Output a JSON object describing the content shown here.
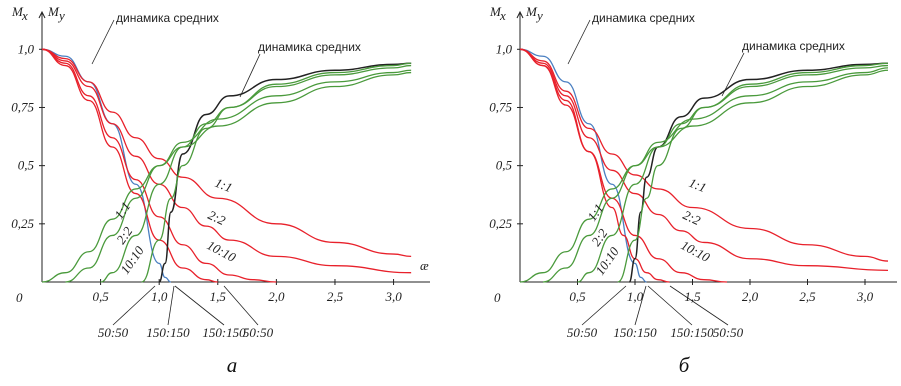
{
  "chart_data": [
    {
      "type": "line",
      "caption": "а",
      "ylabel_x": "M",
      "ylabel_x_sub": "x",
      "ylabel_y": "M",
      "ylabel_y_sub": "y",
      "xlabel": "æ",
      "origin_label": "0",
      "xlim": [
        0,
        3.2
      ],
      "ylim": [
        0,
        1.07
      ],
      "x_ticks": [
        "0,5",
        "1,0",
        "1,5",
        "2,0",
        "2,5",
        "3,0"
      ],
      "x_tick_values": [
        0.5,
        1.0,
        1.5,
        2.0,
        2.5,
        3.0
      ],
      "y_ticks": [
        "1,0",
        "0,75",
        "0,5",
        "0,25"
      ],
      "y_tick_values": [
        1.0,
        0.75,
        0.5,
        0.25
      ],
      "colors": {
        "mean": "#4a7fc1",
        "red": "#e8212b",
        "green": "#4a9a3c",
        "black": "#222222"
      },
      "annotations": {
        "mean_dyn_1": "динамика средних",
        "mean_dyn_2": "динамика средних",
        "red_1_1": "1:1",
        "red_2_2": "2:2",
        "red_10_10": "10:10",
        "green_1_1": "1:1",
        "green_2_2": "2:2",
        "green_10_10": "10:10",
        "bottom_50_50_a": "50:50",
        "bottom_150_150_a": "150:150",
        "bottom_150_150_b": "150:150",
        "bottom_50_50_b": "50:50"
      },
      "series": [
        {
          "kind": "mean_decay",
          "x": [
            0,
            0.2,
            0.4,
            0.6,
            0.8,
            1.0,
            1.05,
            1.1
          ],
          "y": [
            1.0,
            0.97,
            0.86,
            0.68,
            0.42,
            0.08,
            0.02,
            0.0
          ]
        },
        {
          "kind": "red",
          "x": [
            0,
            0.2,
            0.4,
            0.6,
            0.8,
            1.0,
            1.2,
            1.5,
            2.0,
            2.5,
            3.0,
            3.15
          ],
          "y": [
            1.0,
            0.96,
            0.86,
            0.73,
            0.62,
            0.53,
            0.45,
            0.36,
            0.25,
            0.17,
            0.12,
            0.11
          ]
        },
        {
          "kind": "red",
          "x": [
            0,
            0.2,
            0.4,
            0.6,
            0.8,
            1.0,
            1.2,
            1.4,
            1.6,
            2.0,
            2.5,
            3.15
          ],
          "y": [
            1.0,
            0.95,
            0.84,
            0.68,
            0.54,
            0.42,
            0.32,
            0.24,
            0.18,
            0.11,
            0.07,
            0.04
          ]
        },
        {
          "kind": "red",
          "x": [
            0,
            0.2,
            0.4,
            0.6,
            0.8,
            1.0,
            1.2,
            1.4,
            1.6,
            1.8,
            2.0
          ],
          "y": [
            1.0,
            0.94,
            0.8,
            0.62,
            0.44,
            0.28,
            0.16,
            0.08,
            0.03,
            0.01,
            0.0
          ]
        },
        {
          "kind": "red",
          "x": [
            0,
            0.2,
            0.4,
            0.6,
            0.8,
            1.0,
            1.2,
            1.4,
            1.5
          ],
          "y": [
            1.0,
            0.93,
            0.78,
            0.58,
            0.38,
            0.18,
            0.06,
            0.01,
            0.0
          ]
        },
        {
          "kind": "mean_growth",
          "x": [
            1.0,
            1.05,
            1.1,
            1.2,
            1.4,
            1.6,
            2.0,
            2.5,
            3.0,
            3.15
          ],
          "y": [
            0.0,
            0.08,
            0.3,
            0.55,
            0.72,
            0.8,
            0.87,
            0.91,
            0.935,
            0.94
          ]
        },
        {
          "kind": "green",
          "x": [
            0,
            0.2,
            0.4,
            0.6,
            0.8,
            1.0,
            1.2,
            1.5,
            2.0,
            2.5,
            3.0,
            3.15
          ],
          "y": [
            0.0,
            0.04,
            0.13,
            0.27,
            0.4,
            0.5,
            0.58,
            0.67,
            0.77,
            0.84,
            0.89,
            0.9
          ]
        },
        {
          "kind": "green",
          "x": [
            0.2,
            0.4,
            0.6,
            0.8,
            1.0,
            1.2,
            1.5,
            2.0,
            2.5,
            3.0,
            3.15
          ],
          "y": [
            0.0,
            0.06,
            0.2,
            0.36,
            0.5,
            0.6,
            0.7,
            0.8,
            0.86,
            0.9,
            0.91
          ]
        },
        {
          "kind": "green",
          "x": [
            0.5,
            0.6,
            0.8,
            1.0,
            1.2,
            1.4,
            1.6,
            2.0,
            2.5,
            3.0,
            3.15
          ],
          "y": [
            0.0,
            0.04,
            0.2,
            0.42,
            0.58,
            0.68,
            0.75,
            0.84,
            0.89,
            0.92,
            0.93
          ]
        },
        {
          "kind": "green",
          "x": [
            0.85,
            1.0,
            1.1,
            1.2,
            1.4,
            1.6,
            2.0,
            2.5,
            3.0,
            3.15
          ],
          "y": [
            0.0,
            0.18,
            0.36,
            0.5,
            0.66,
            0.75,
            0.85,
            0.9,
            0.93,
            0.94
          ]
        }
      ]
    },
    {
      "type": "line",
      "caption": "б",
      "ylabel_x": "M",
      "ylabel_x_sub": "x",
      "ylabel_y": "M",
      "ylabel_y_sub": "y",
      "xlabel": "",
      "origin_label": "0",
      "xlim": [
        0,
        3.2
      ],
      "ylim": [
        0,
        1.07
      ],
      "x_ticks": [
        "0,5",
        "1,0",
        "1,5",
        "2,0",
        "2,5",
        "3,0"
      ],
      "x_tick_values": [
        0.5,
        1.0,
        1.5,
        2.0,
        2.5,
        3.0
      ],
      "y_ticks": [
        "1,0",
        "0,75",
        "0,5",
        "0,25"
      ],
      "y_tick_values": [
        1.0,
        0.75,
        0.5,
        0.25
      ],
      "colors": {
        "mean": "#4a7fc1",
        "red": "#e8212b",
        "green": "#4a9a3c",
        "black": "#222222"
      },
      "annotations": {
        "mean_dyn_1": "динамика средних",
        "mean_dyn_2": "динамика средних",
        "red_1_1": "1:1",
        "red_2_2": "2:2",
        "red_10_10": "10:10",
        "green_1_1": "1:1",
        "green_2_2": "2:2",
        "green_10_10": "10:10",
        "bottom_50_50_a": "50:50",
        "bottom_150_150_a": "150:150",
        "bottom_150_150_b": "150:150",
        "bottom_50_50_b": "50:50"
      },
      "series": [
        {
          "kind": "mean_decay",
          "x": [
            0,
            0.2,
            0.4,
            0.6,
            0.8,
            1.0,
            1.05,
            1.1
          ],
          "y": [
            1.0,
            0.97,
            0.86,
            0.68,
            0.42,
            0.08,
            0.02,
            0.0
          ]
        },
        {
          "kind": "red",
          "x": [
            0,
            0.2,
            0.4,
            0.6,
            0.8,
            1.0,
            1.2,
            1.5,
            2.0,
            2.5,
            3.0,
            3.2
          ],
          "y": [
            1.0,
            0.95,
            0.82,
            0.66,
            0.55,
            0.46,
            0.4,
            0.32,
            0.23,
            0.16,
            0.11,
            0.09
          ]
        },
        {
          "kind": "red",
          "x": [
            0,
            0.2,
            0.4,
            0.6,
            0.8,
            1.0,
            1.2,
            1.4,
            1.6,
            2.0,
            2.5,
            3.2
          ],
          "y": [
            1.0,
            0.94,
            0.8,
            0.62,
            0.48,
            0.38,
            0.29,
            0.22,
            0.17,
            0.1,
            0.07,
            0.05
          ]
        },
        {
          "kind": "red",
          "x": [
            0,
            0.2,
            0.4,
            0.6,
            0.8,
            1.0,
            1.2,
            1.4,
            1.6,
            1.8
          ],
          "y": [
            1.0,
            0.93,
            0.76,
            0.56,
            0.36,
            0.2,
            0.1,
            0.04,
            0.01,
            0.0
          ]
        },
        {
          "kind": "red",
          "x": [
            0,
            0.2,
            0.4,
            0.6,
            0.8,
            0.9,
            1.0,
            1.1,
            1.2,
            1.3
          ],
          "y": [
            1.0,
            0.93,
            0.78,
            0.56,
            0.32,
            0.2,
            0.1,
            0.04,
            0.01,
            0.0
          ]
        },
        {
          "kind": "mean_growth",
          "x": [
            0.95,
            1.0,
            1.05,
            1.1,
            1.2,
            1.4,
            1.6,
            2.0,
            2.5,
            3.0,
            3.2
          ],
          "y": [
            0.0,
            0.1,
            0.3,
            0.45,
            0.58,
            0.71,
            0.79,
            0.87,
            0.91,
            0.935,
            0.94
          ]
        },
        {
          "kind": "green",
          "x": [
            0,
            0.2,
            0.4,
            0.6,
            0.8,
            1.0,
            1.2,
            1.5,
            2.0,
            2.5,
            3.0,
            3.2
          ],
          "y": [
            0.0,
            0.04,
            0.13,
            0.27,
            0.4,
            0.5,
            0.58,
            0.67,
            0.77,
            0.84,
            0.89,
            0.91
          ]
        },
        {
          "kind": "green",
          "x": [
            0.2,
            0.4,
            0.6,
            0.8,
            1.0,
            1.2,
            1.5,
            2.0,
            2.5,
            3.0,
            3.2
          ],
          "y": [
            0.0,
            0.06,
            0.2,
            0.36,
            0.5,
            0.6,
            0.7,
            0.8,
            0.86,
            0.9,
            0.92
          ]
        },
        {
          "kind": "green",
          "x": [
            0.5,
            0.6,
            0.8,
            1.0,
            1.2,
            1.4,
            1.6,
            2.0,
            2.5,
            3.0,
            3.2
          ],
          "y": [
            0.0,
            0.04,
            0.2,
            0.42,
            0.58,
            0.68,
            0.75,
            0.84,
            0.89,
            0.92,
            0.93
          ]
        },
        {
          "kind": "green",
          "x": [
            0.85,
            1.0,
            1.1,
            1.2,
            1.4,
            1.6,
            2.0,
            2.5,
            3.0,
            3.2
          ],
          "y": [
            0.0,
            0.18,
            0.36,
            0.5,
            0.66,
            0.75,
            0.85,
            0.9,
            0.93,
            0.94
          ]
        }
      ]
    }
  ]
}
